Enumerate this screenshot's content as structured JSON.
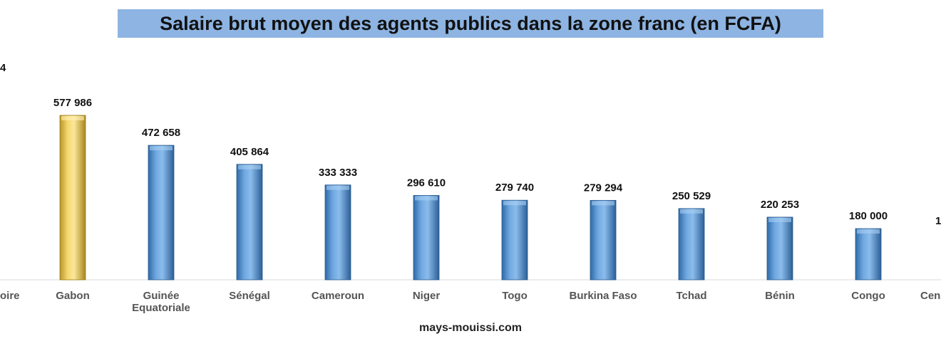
{
  "colors": {
    "title_bg": "#8db4e2",
    "bar_default": "#5b9bd5",
    "bar_highlight": "#f5d76e",
    "axis": "#d9d9d9"
  },
  "chart_data": {
    "type": "bar",
    "title": "Salaire brut moyen des agents publics dans la zone franc (en FCFA)",
    "source": "mays-mouissi.com",
    "categories": [
      "Côte d'Ivoire",
      "Gabon",
      "Guinée Equatoriale",
      "Sénégal",
      "Cameroun",
      "Niger",
      "Togo",
      "Burkina Faso",
      "Tchad",
      "Bénin",
      "Congo",
      "Centrafrique"
    ],
    "category_lines": [
      [
        "oire"
      ],
      [
        "Gabon"
      ],
      [
        "Guinée",
        "Equatoriale"
      ],
      [
        "Sénégal"
      ],
      [
        "Cameroun"
      ],
      [
        "Niger"
      ],
      [
        "Togo"
      ],
      [
        "Burkina Faso"
      ],
      [
        "Tchad"
      ],
      [
        "Bénin"
      ],
      [
        "Congo"
      ],
      [
        "Cen"
      ]
    ],
    "values": [
      null,
      577986,
      472658,
      405864,
      333333,
      296610,
      279740,
      279294,
      250529,
      220253,
      180000,
      null
    ],
    "value_labels": [
      "4",
      "577 986",
      "472 658",
      "405 864",
      "333 333",
      "296 610",
      "279 740",
      "279 294",
      "250 529",
      "220 253",
      "180 000",
      "1"
    ],
    "highlight": "Gabon",
    "ylim": [
      0,
      700000
    ],
    "grid": false,
    "legend": "none"
  }
}
